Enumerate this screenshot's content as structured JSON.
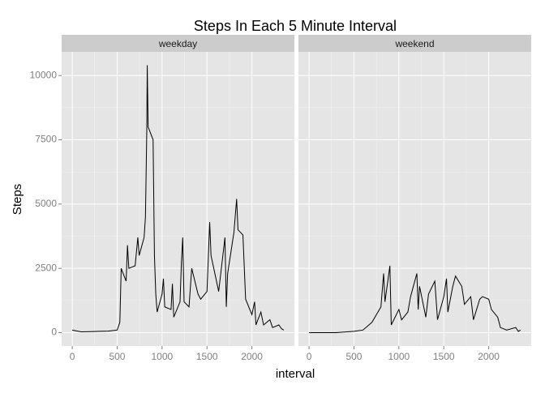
{
  "chart_data": {
    "type": "line",
    "title": "Steps In Each 5 Minute Interval",
    "xlabel": "interval",
    "ylabel": "Steps",
    "xlim": [
      -118,
      2473
    ],
    "ylim": [
      -520,
      10920
    ],
    "xticks": [
      0,
      500,
      1000,
      1500,
      2000
    ],
    "yticks": [
      0,
      2500,
      5000,
      7500,
      10000
    ],
    "grid": true,
    "color": "#000000",
    "series": [
      {
        "name": "weekday",
        "x": [
          0,
          100,
          200,
          300,
          400,
          500,
          530,
          545,
          600,
          615,
          630,
          700,
          730,
          745,
          800,
          815,
          830,
          835,
          845,
          900,
          915,
          930,
          945,
          1000,
          1015,
          1030,
          1100,
          1115,
          1130,
          1200,
          1215,
          1230,
          1245,
          1300,
          1330,
          1400,
          1430,
          1500,
          1530,
          1545,
          1600,
          1630,
          1700,
          1715,
          1730,
          1800,
          1830,
          1845,
          1900,
          1930,
          2000,
          2030,
          2045,
          2100,
          2130,
          2200,
          2230,
          2300,
          2330,
          2355
        ],
        "values": [
          100,
          30,
          40,
          50,
          60,
          100,
          400,
          2500,
          2000,
          3400,
          2500,
          2600,
          3700,
          3000,
          3700,
          4500,
          7900,
          10400,
          8000,
          7500,
          3000,
          1500,
          800,
          1500,
          2100,
          1000,
          900,
          1900,
          600,
          1200,
          2700,
          3700,
          1200,
          1000,
          2500,
          1500,
          1300,
          1600,
          4300,
          3000,
          2100,
          1600,
          3700,
          1000,
          2300,
          3900,
          5200,
          4000,
          3800,
          1300,
          700,
          1200,
          300,
          800,
          300,
          500,
          200,
          300,
          150,
          100
        ]
      },
      {
        "name": "weekend",
        "x": [
          0,
          300,
          500,
          600,
          700,
          800,
          830,
          845,
          900,
          915,
          1000,
          1030,
          1100,
          1130,
          1200,
          1215,
          1230,
          1300,
          1330,
          1400,
          1430,
          1500,
          1530,
          1545,
          1600,
          1630,
          1700,
          1730,
          1800,
          1830,
          1900,
          1930,
          2000,
          2030,
          2100,
          2130,
          2200,
          2300,
          2330,
          2355
        ],
        "values": [
          0,
          0,
          50,
          100,
          400,
          1000,
          2300,
          1200,
          2600,
          300,
          900,
          500,
          800,
          1400,
          2300,
          900,
          1800,
          600,
          1500,
          2000,
          500,
          1400,
          2100,
          800,
          1800,
          2200,
          1800,
          1100,
          1400,
          500,
          1300,
          1400,
          1300,
          900,
          600,
          200,
          100,
          200,
          50,
          100
        ]
      }
    ]
  }
}
